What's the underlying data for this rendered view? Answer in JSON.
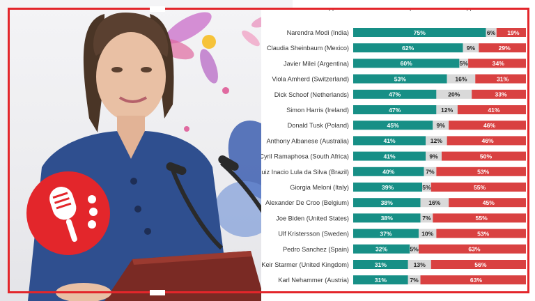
{
  "colors": {
    "approve": "#178f86",
    "disapprove": "#d94141",
    "dont_know": "#d9d9d9",
    "frame": "#e3262b",
    "blazer": "#2f4f8f"
  },
  "legend": {
    "approve": "Approve",
    "dont_know": "Don't know/No opinion",
    "disapprove": "Disapprove"
  },
  "icons": {
    "badge": "microphone-icon"
  },
  "chart_data": {
    "type": "bar",
    "stacked": true,
    "orientation": "horizontal",
    "categories": [
      "Narendra Modi (India)",
      "Claudia Sheinbaum (Mexico)",
      "Javier Milei (Argentina)",
      "Viola Amherd (Switzerland)",
      "Dick Schoof (Netherlands)",
      "Simon Harris (Ireland)",
      "Donald Tusk (Poland)",
      "Anthony Albanese (Australia)",
      "Cyril Ramaphosa (South Africa)",
      "Luiz Inacio Lula da Silva (Brazil)",
      "Giorgia Meloni (Italy)",
      "Alexander De Croo (Belgium)",
      "Joe Biden (United States)",
      "Ulf Kristersson (Sweden)",
      "Pedro Sanchez (Spain)",
      "Keir Starmer (United Kingdom)",
      "Karl Nehammer (Austria)"
    ],
    "series": [
      {
        "name": "Approve",
        "values": [
          75,
          62,
          60,
          53,
          47,
          47,
          45,
          41,
          41,
          40,
          39,
          38,
          38,
          37,
          32,
          31,
          31
        ]
      },
      {
        "name": "Don't know/No opinion",
        "values": [
          6,
          9,
          5,
          16,
          20,
          12,
          9,
          12,
          9,
          7,
          5,
          16,
          7,
          10,
          5,
          13,
          7
        ]
      },
      {
        "name": "Disapprove",
        "values": [
          19,
          29,
          34,
          31,
          33,
          41,
          46,
          46,
          50,
          53,
          55,
          45,
          55,
          53,
          63,
          56,
          63
        ]
      }
    ],
    "data_labels": [
      [
        "75%",
        "6%",
        "19%"
      ],
      [
        "62%",
        "9%",
        "29%"
      ],
      [
        "60%",
        "5%",
        "34%"
      ],
      [
        "53%",
        "16%",
        "31%"
      ],
      [
        "47%",
        "20%",
        "33%"
      ],
      [
        "47%",
        "12%",
        "41%"
      ],
      [
        "45%",
        "9%",
        "46%"
      ],
      [
        "41%",
        "12%",
        "46%"
      ],
      [
        "41%",
        "9%",
        "50%"
      ],
      [
        "40%",
        "7%",
        "53%"
      ],
      [
        "39%",
        "5%",
        "55%"
      ],
      [
        "38%",
        "16%",
        "45%"
      ],
      [
        "38%",
        "7%",
        "55%"
      ],
      [
        "37%",
        "10%",
        "53%"
      ],
      [
        "32%",
        "5%",
        "63%"
      ],
      [
        "31%",
        "13%",
        "56%"
      ],
      [
        "31%",
        "7%",
        "63%"
      ]
    ],
    "xlim": [
      0,
      100
    ],
    "grid": false,
    "legend_position": "top"
  }
}
